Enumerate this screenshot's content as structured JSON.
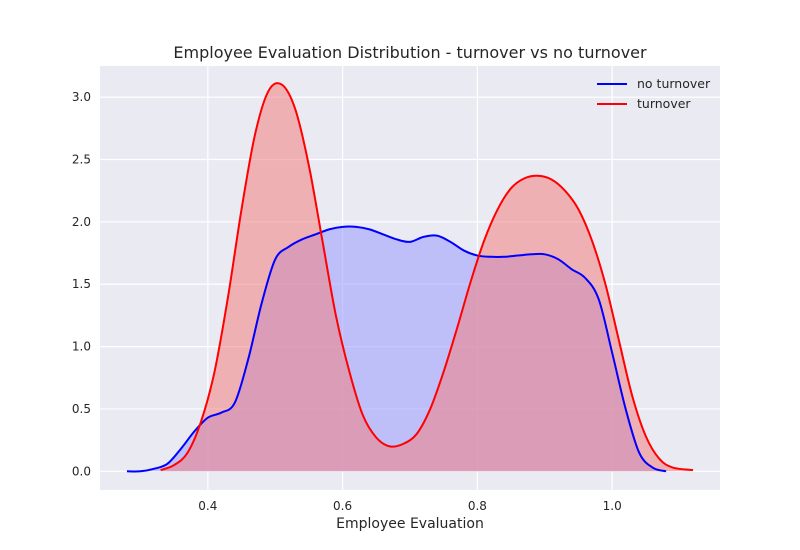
{
  "chart_data": {
    "type": "area",
    "title": "Employee Evaluation Distribution - turnover vs no turnover",
    "xlabel": "Employee Evaluation",
    "ylabel": "",
    "xlim": [
      0.24,
      1.16
    ],
    "ylim": [
      -0.15,
      3.25
    ],
    "xticks": [
      0.4,
      0.6,
      0.8,
      1.0
    ],
    "xtick_labels": [
      "0.4",
      "0.6",
      "0.8",
      "1.0"
    ],
    "yticks": [
      0.0,
      0.5,
      1.0,
      1.5,
      2.0,
      2.5,
      3.0
    ],
    "ytick_labels": [
      "0.0",
      "0.5",
      "1.0",
      "1.5",
      "2.0",
      "2.5",
      "3.0"
    ],
    "grid": true,
    "legend_position": "upper right",
    "background_color": "#EAEAF2",
    "series": [
      {
        "name": "no turnover",
        "color": "#0000FF",
        "fill_color": "#9999FF",
        "x": [
          0.28,
          0.3,
          0.32,
          0.34,
          0.36,
          0.38,
          0.4,
          0.42,
          0.44,
          0.46,
          0.48,
          0.5,
          0.52,
          0.54,
          0.56,
          0.58,
          0.6,
          0.62,
          0.64,
          0.66,
          0.68,
          0.7,
          0.72,
          0.74,
          0.76,
          0.78,
          0.8,
          0.82,
          0.84,
          0.86,
          0.88,
          0.9,
          0.92,
          0.94,
          0.96,
          0.98,
          1.0,
          1.02,
          1.04,
          1.06,
          1.08
        ],
        "y": [
          0.0,
          0.0,
          0.02,
          0.06,
          0.18,
          0.32,
          0.43,
          0.47,
          0.55,
          0.9,
          1.35,
          1.7,
          1.8,
          1.86,
          1.9,
          1.94,
          1.96,
          1.96,
          1.94,
          1.9,
          1.86,
          1.84,
          1.88,
          1.89,
          1.84,
          1.77,
          1.73,
          1.72,
          1.72,
          1.73,
          1.74,
          1.74,
          1.7,
          1.62,
          1.55,
          1.38,
          0.95,
          0.5,
          0.15,
          0.03,
          0.0
        ]
      },
      {
        "name": "turnover",
        "color": "#FF0000",
        "fill_color": "#F08080",
        "x": [
          0.33,
          0.35,
          0.37,
          0.39,
          0.41,
          0.43,
          0.45,
          0.47,
          0.49,
          0.51,
          0.53,
          0.55,
          0.57,
          0.59,
          0.61,
          0.63,
          0.65,
          0.67,
          0.69,
          0.71,
          0.73,
          0.75,
          0.77,
          0.79,
          0.81,
          0.83,
          0.85,
          0.87,
          0.89,
          0.91,
          0.93,
          0.95,
          0.97,
          0.99,
          1.01,
          1.03,
          1.05,
          1.07,
          1.09,
          1.12
        ],
        "y": [
          0.01,
          0.05,
          0.15,
          0.4,
          0.8,
          1.4,
          2.1,
          2.7,
          3.05,
          3.1,
          2.9,
          2.45,
          1.85,
          1.25,
          0.8,
          0.45,
          0.27,
          0.2,
          0.22,
          0.3,
          0.5,
          0.8,
          1.15,
          1.52,
          1.85,
          2.1,
          2.27,
          2.35,
          2.37,
          2.34,
          2.25,
          2.1,
          1.85,
          1.5,
          1.05,
          0.6,
          0.28,
          0.1,
          0.03,
          0.01
        ]
      }
    ]
  }
}
